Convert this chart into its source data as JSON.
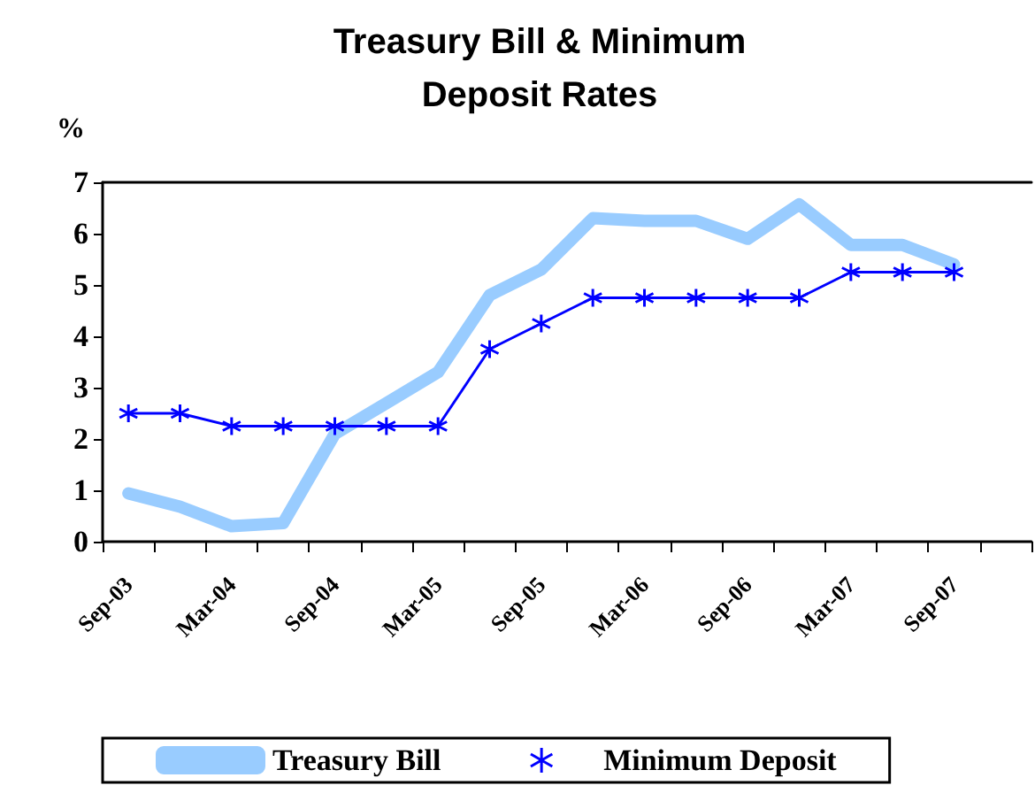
{
  "chart_data": {
    "type": "line",
    "title": "Treasury Bill & Minimum\nDeposit Rates",
    "ylabel": "%",
    "categories": [
      "Sep-03",
      null,
      "Mar-04",
      null,
      "Sep-04",
      null,
      "Mar-05",
      null,
      "Sep-05",
      null,
      "Mar-06",
      null,
      "Sep-06",
      null,
      "Mar-07",
      null,
      "Sep-07",
      null
    ],
    "series": [
      {
        "name": "Treasury Bill",
        "color": "#99ccff",
        "marker": "none",
        "values": [
          0.94,
          0.68,
          0.3,
          0.36,
          2.1,
          2.7,
          3.3,
          4.8,
          5.3,
          6.3,
          6.25,
          6.25,
          5.9,
          6.57,
          5.78,
          5.78,
          5.4,
          null
        ]
      },
      {
        "name": "Minimum Deposit",
        "color": "#0000ff",
        "marker": "cross",
        "values": [
          2.5,
          2.5,
          2.25,
          2.25,
          2.25,
          2.25,
          2.25,
          3.75,
          4.25,
          4.75,
          4.75,
          4.75,
          4.75,
          4.75,
          5.25,
          5.25,
          5.25,
          null
        ]
      }
    ],
    "ylim": [
      0,
      7
    ],
    "yticks": [
      0,
      1,
      2,
      3,
      4,
      5,
      6,
      7
    ],
    "grid": false,
    "legend": "bottom",
    "line_style": "solid"
  }
}
